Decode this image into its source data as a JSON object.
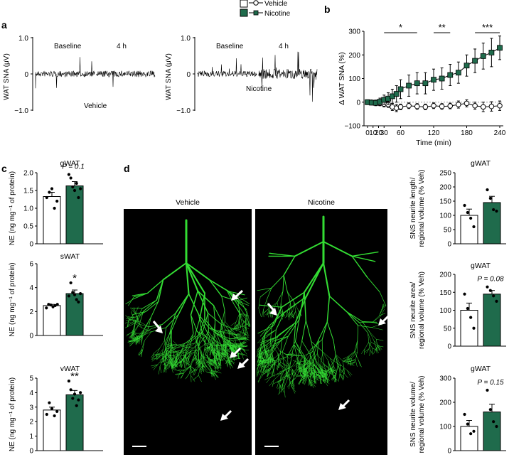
{
  "legend": {
    "items": [
      {
        "label": "Vehicle",
        "color": "#ffffff"
      },
      {
        "label": "Nicotine",
        "color": "#1f6b4c"
      }
    ]
  },
  "colors": {
    "vehicle": "#ffffff",
    "nicotine": "#1f6b4c",
    "neurite": "#33dd33"
  },
  "panels": {
    "a": {
      "label": "a",
      "ylabel": "WAT SNA (μV)",
      "yticks": [
        "1.0",
        "0",
        "−1.0"
      ],
      "traces": [
        {
          "baseline": "Baseline",
          "after": "4 h",
          "group": "Vehicle"
        },
        {
          "baseline": "Baseline",
          "after": "4 h",
          "group": "Nicotine"
        }
      ]
    },
    "b": {
      "label": "b"
    },
    "c": {
      "label": "c"
    },
    "d": {
      "label": "d",
      "image_titles": [
        "Vehicle",
        "Nicotine"
      ]
    }
  },
  "chart_data": [
    {
      "id": "b",
      "type": "line",
      "title": "",
      "xlabel": "Time (min)",
      "ylabel": "Δ WAT SNA (%)",
      "xlim": [
        0,
        240
      ],
      "ylim": [
        -100,
        300
      ],
      "xticks": [
        0,
        10,
        20,
        30,
        60,
        120,
        180,
        240
      ],
      "xtick_labels": [
        "0",
        "10",
        "20",
        "30",
        "60",
        "120",
        "180",
        "240"
      ],
      "yticks": [
        -100,
        0,
        100,
        200,
        300
      ],
      "ytick_labels": [
        "−100",
        "0",
        "100",
        "200",
        "300"
      ],
      "x": [
        0,
        7.5,
        15,
        22.5,
        30,
        37.5,
        45,
        52.5,
        60,
        75,
        90,
        105,
        120,
        135,
        150,
        165,
        180,
        195,
        210,
        225,
        240
      ],
      "series": [
        {
          "name": "Vehicle",
          "values": [
            0,
            0,
            -2,
            -5,
            -8,
            -10,
            -20,
            -25,
            -20,
            -15,
            -18,
            -20,
            -15,
            -18,
            -16,
            -10,
            -5,
            -15,
            -20,
            -18,
            -15
          ],
          "errors": [
            10,
            8,
            10,
            10,
            12,
            12,
            15,
            15,
            12,
            12,
            12,
            12,
            12,
            12,
            12,
            15,
            15,
            15,
            20,
            20,
            20
          ]
        },
        {
          "name": "Nicotine",
          "values": [
            0,
            -2,
            -3,
            2,
            10,
            15,
            25,
            35,
            55,
            70,
            80,
            80,
            95,
            100,
            115,
            125,
            155,
            175,
            195,
            210,
            230
          ],
          "errors": [
            10,
            10,
            12,
            15,
            20,
            25,
            30,
            35,
            40,
            45,
            45,
            45,
            45,
            45,
            45,
            45,
            45,
            50,
            55,
            60,
            50
          ]
        }
      ],
      "significance": [
        {
          "from": 30,
          "to": 90,
          "label": "*"
        },
        {
          "from": 120,
          "to": 150,
          "label": "**"
        },
        {
          "from": 195,
          "to": 240,
          "label": "***"
        }
      ]
    },
    {
      "id": "c-gwat",
      "type": "bar",
      "title": "gWAT",
      "categories": [
        "Vehicle",
        "Nicotine"
      ],
      "values": [
        1.33,
        1.63
      ],
      "errors": [
        0.12,
        0.12
      ],
      "points": [
        [
          1.3,
          1.45,
          1.55,
          1.0,
          1.2
        ],
        [
          1.95,
          1.85,
          1.6,
          1.5,
          1.7,
          1.3,
          1.55
        ]
      ],
      "ylabel": "NE (ng mg⁻¹ of protein)",
      "ylim": [
        0,
        2.0
      ],
      "yticks": [
        0,
        0.5,
        1.0,
        1.5,
        2.0
      ],
      "ytick_labels": [
        "0",
        "0.5",
        "1.0",
        "1.5",
        "2.0"
      ],
      "annotation": "P = 0.1"
    },
    {
      "id": "c-swat",
      "type": "bar",
      "title": "sWAT",
      "categories": [
        "Vehicle",
        "Nicotine"
      ],
      "values": [
        2.5,
        3.5
      ],
      "errors": [
        0.1,
        0.3
      ],
      "points": [
        [
          2.3,
          2.6,
          2.55,
          2.4,
          2.5,
          2.6
        ],
        [
          3.3,
          4.4,
          3.6,
          3.4,
          3.0,
          2.8,
          3.5
        ]
      ],
      "ylabel": "NE (ng mg⁻¹ of protein)",
      "ylim": [
        0,
        6
      ],
      "yticks": [
        0,
        2,
        4,
        6
      ],
      "ytick_labels": [
        "0",
        "2",
        "4",
        "6"
      ],
      "annotation": "*"
    },
    {
      "id": "c-vwat",
      "type": "bar",
      "title": "vWAT",
      "categories": [
        "Vehicle",
        "Nicotine"
      ],
      "values": [
        2.8,
        3.85
      ],
      "errors": [
        0.2,
        0.3
      ],
      "points": [
        [
          2.5,
          3.3,
          2.9,
          2.4,
          2.7
        ],
        [
          4.8,
          4.2,
          3.6,
          3.9,
          3.1,
          3.5,
          4.0
        ]
      ],
      "ylabel": "NE (ng mg⁻¹ of protein)",
      "ylim": [
        0,
        5
      ],
      "yticks": [
        0,
        1,
        2,
        3,
        4,
        5
      ],
      "ytick_labels": [
        "0",
        "1",
        "2",
        "3",
        "4",
        "5"
      ],
      "annotation": "**"
    },
    {
      "id": "d-length",
      "type": "bar",
      "title": "gWAT",
      "categories": [
        "Vehicle",
        "Nicotine"
      ],
      "values": [
        100,
        145
      ],
      "errors": [
        22,
        22
      ],
      "points": [
        [
          135,
          110,
          90,
          60
        ],
        [
          190,
          160,
          120,
          115
        ]
      ],
      "ylabel": "SNS neurite length/ regional volume (% Veh)",
      "ylim": [
        0,
        250
      ],
      "yticks": [
        0,
        50,
        100,
        150,
        200,
        250
      ],
      "ytick_labels": [
        "0",
        "50",
        "100",
        "150",
        "200",
        "250"
      ],
      "annotation": ""
    },
    {
      "id": "d-area",
      "type": "bar",
      "title": "gWAT",
      "categories": [
        "Vehicle",
        "Nicotine"
      ],
      "values": [
        100,
        145
      ],
      "errors": [
        20,
        10
      ],
      "points": [
        [
          145,
          105,
          80,
          50
        ],
        [
          165,
          155,
          140,
          125
        ]
      ],
      "ylabel": "SNS neurite area/ regional volume (% Veh)",
      "ylim": [
        0,
        200
      ],
      "yticks": [
        0,
        50,
        100,
        150,
        200
      ],
      "ytick_labels": [
        "0",
        "50",
        "100",
        "150",
        "200"
      ],
      "annotation": "P = 0.08"
    },
    {
      "id": "d-volume",
      "type": "bar",
      "title": "gWAT",
      "categories": [
        "Vehicle",
        "Nicotine"
      ],
      "values": [
        100,
        160
      ],
      "errors": [
        25,
        32
      ],
      "points": [
        [
          150,
          110,
          70,
          80
        ],
        [
          250,
          170,
          120,
          100
        ]
      ],
      "ylabel": "SNS neurite volume/ regional volume (% Veh)",
      "ylim": [
        0,
        300
      ],
      "yticks": [
        0,
        100,
        200,
        300
      ],
      "ytick_labels": [
        "0",
        "100",
        "200",
        "300"
      ],
      "annotation": "P = 0.15"
    }
  ]
}
